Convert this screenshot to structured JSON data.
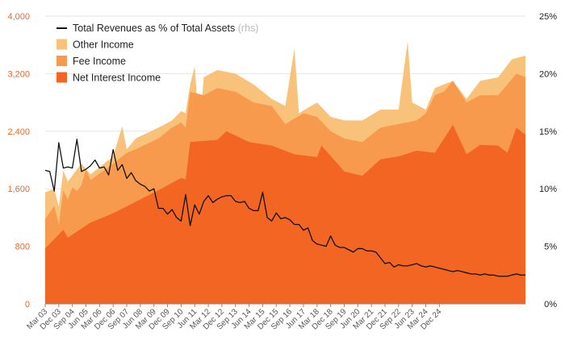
{
  "chart_data": {
    "type": "area",
    "stacked": true,
    "grid": true,
    "legend_position": "top-left",
    "x_label_first": "Mar 03",
    "x_tick_labels": [
      "Mar 03",
      "Dec 03",
      "Sep 04",
      "Jun 05",
      "Mar 06",
      "Dec 06",
      "Sep 07",
      "Jun 08",
      "Mar 09",
      "Dec 09",
      "Sep 10",
      "Jun 11",
      "Mar 12",
      "Dec 12",
      "Sep 13",
      "Jun 14",
      "Mar 15",
      "Dec 15",
      "Sep 16",
      "Jun 17",
      "Mar 18",
      "Dec 18",
      "Sep 19",
      "Jun 20",
      "Mar 21",
      "Dec 21",
      "Sep 22",
      "Jun 23",
      "Mar 24",
      "Dec 24"
    ],
    "y_left": {
      "ylim": [
        0,
        4000
      ],
      "ticks": [
        0,
        800,
        1600,
        2400,
        3200,
        4000
      ],
      "tick_labels": [
        "0",
        "800",
        "1,600",
        "2,400",
        "3,200",
        "4,000"
      ]
    },
    "y_right": {
      "ylim": [
        0,
        25
      ],
      "ticks": [
        0,
        5,
        10,
        15,
        20,
        25
      ],
      "tick_labels": [
        "0%",
        "5%",
        "10%",
        "15%",
        "20%",
        "25%"
      ]
    },
    "series": [
      {
        "name": "Net Interest Income",
        "axis": "left",
        "color": "#f26522",
        "keypoints": [
          [
            0,
            770
          ],
          [
            4,
            1030
          ],
          [
            5,
            920
          ],
          [
            10,
            1130
          ],
          [
            15,
            1260
          ],
          [
            20,
            1420
          ],
          [
            25,
            1580
          ],
          [
            30,
            1750
          ],
          [
            31,
            1730
          ],
          [
            32,
            2250
          ],
          [
            38,
            2280
          ],
          [
            40,
            2400
          ],
          [
            45,
            2250
          ],
          [
            50,
            2200
          ],
          [
            55,
            2080
          ],
          [
            60,
            2040
          ],
          [
            61,
            2200
          ],
          [
            66,
            1840
          ],
          [
            70,
            1780
          ],
          [
            74,
            2010
          ],
          [
            78,
            2050
          ],
          [
            82,
            2130
          ],
          [
            86,
            2100
          ],
          [
            90,
            2490
          ],
          [
            93,
            2080
          ],
          [
            96,
            2210
          ],
          [
            100,
            2200
          ],
          [
            102,
            2100
          ],
          [
            104,
            2450
          ],
          [
            106,
            2350
          ]
        ]
      },
      {
        "name": "Fee Income",
        "axis": "left",
        "color": "#f79a4e",
        "keypoints": [
          [
            0,
            1180
          ],
          [
            2,
            1360
          ],
          [
            3,
            1100
          ],
          [
            4,
            1580
          ],
          [
            5,
            1450
          ],
          [
            6,
            1620
          ],
          [
            7,
            1570
          ],
          [
            8,
            1650
          ],
          [
            9,
            1870
          ],
          [
            10,
            1720
          ],
          [
            15,
            1950
          ],
          [
            18,
            2100
          ],
          [
            20,
            2150
          ],
          [
            25,
            2300
          ],
          [
            28,
            2450
          ],
          [
            30,
            2520
          ],
          [
            31,
            2450
          ],
          [
            32,
            2950
          ],
          [
            35,
            2900
          ],
          [
            38,
            3000
          ],
          [
            42,
            2950
          ],
          [
            46,
            2800
          ],
          [
            50,
            2750
          ],
          [
            53,
            2500
          ],
          [
            57,
            2650
          ],
          [
            60,
            2600
          ],
          [
            63,
            2400
          ],
          [
            66,
            2300
          ],
          [
            70,
            2250
          ],
          [
            74,
            2450
          ],
          [
            78,
            2500
          ],
          [
            82,
            2550
          ],
          [
            84,
            2650
          ],
          [
            86,
            2900
          ],
          [
            88,
            2950
          ],
          [
            90,
            3100
          ],
          [
            93,
            2800
          ],
          [
            96,
            2900
          ],
          [
            100,
            2900
          ],
          [
            104,
            3200
          ],
          [
            106,
            3150
          ]
        ]
      },
      {
        "name": "Other Income",
        "axis": "left",
        "color": "#f9c27b",
        "keypoints": [
          [
            0,
            1550
          ],
          [
            2,
            1600
          ],
          [
            3,
            1350
          ],
          [
            4,
            1850
          ],
          [
            5,
            1700
          ],
          [
            8,
            1950
          ],
          [
            10,
            1800
          ],
          [
            15,
            2050
          ],
          [
            17,
            2470
          ],
          [
            18,
            2150
          ],
          [
            20,
            2300
          ],
          [
            25,
            2450
          ],
          [
            28,
            2550
          ],
          [
            30,
            2680
          ],
          [
            31,
            2650
          ],
          [
            32,
            3050
          ],
          [
            33,
            3300
          ],
          [
            34,
            2400
          ],
          [
            35,
            3150
          ],
          [
            38,
            3250
          ],
          [
            42,
            3200
          ],
          [
            46,
            3050
          ],
          [
            50,
            2850
          ],
          [
            53,
            2750
          ],
          [
            55,
            3550
          ],
          [
            56,
            2650
          ],
          [
            60,
            2800
          ],
          [
            63,
            2600
          ],
          [
            66,
            2550
          ],
          [
            70,
            2550
          ],
          [
            74,
            2700
          ],
          [
            78,
            2700
          ],
          [
            80,
            3650
          ],
          [
            81,
            2800
          ],
          [
            84,
            2700
          ],
          [
            86,
            3000
          ],
          [
            88,
            3050
          ],
          [
            90,
            3100
          ],
          [
            93,
            2850
          ],
          [
            96,
            3100
          ],
          [
            100,
            3150
          ],
          [
            103,
            3400
          ],
          [
            106,
            3450
          ]
        ]
      },
      {
        "name": "Total Revenues as % of Total Assets",
        "name_note": "(rhs)",
        "axis": "right",
        "color": "#111111",
        "keypoints": [
          [
            0,
            11.6
          ],
          [
            1,
            11.5
          ],
          [
            2,
            9.8
          ],
          [
            3,
            14.0
          ],
          [
            4,
            11.8
          ],
          [
            5,
            11.9
          ],
          [
            6,
            11.8
          ],
          [
            7,
            14.3
          ],
          [
            8,
            11.5
          ],
          [
            9,
            11.7
          ],
          [
            10,
            12.0
          ],
          [
            11,
            12.5
          ],
          [
            12,
            11.8
          ],
          [
            13,
            11.9
          ],
          [
            14,
            11.2
          ],
          [
            15,
            13.4
          ],
          [
            16,
            11.6
          ],
          [
            17,
            12.1
          ],
          [
            18,
            10.9
          ],
          [
            19,
            11.4
          ],
          [
            20,
            10.7
          ],
          [
            21,
            10.4
          ],
          [
            22,
            10.2
          ],
          [
            23,
            9.8
          ],
          [
            24,
            10.0
          ],
          [
            25,
            8.3
          ],
          [
            26,
            8.3
          ],
          [
            27,
            7.8
          ],
          [
            28,
            8.2
          ],
          [
            29,
            7.5
          ],
          [
            30,
            7.2
          ],
          [
            31,
            9.5
          ],
          [
            32,
            6.8
          ],
          [
            33,
            8.6
          ],
          [
            34,
            7.8
          ],
          [
            35,
            8.9
          ],
          [
            36,
            9.4
          ],
          [
            37,
            8.8
          ],
          [
            38,
            9.1
          ],
          [
            39,
            9.3
          ],
          [
            40,
            9.4
          ],
          [
            41,
            9.4
          ],
          [
            42,
            8.9
          ],
          [
            43,
            8.8
          ],
          [
            44,
            8.9
          ],
          [
            45,
            8.3
          ],
          [
            46,
            8.1
          ],
          [
            47,
            8.1
          ],
          [
            48,
            9.7
          ],
          [
            49,
            7.5
          ],
          [
            50,
            7.2
          ],
          [
            51,
            7.9
          ],
          [
            52,
            7.4
          ],
          [
            53,
            7.5
          ],
          [
            54,
            7.3
          ],
          [
            55,
            6.9
          ],
          [
            56,
            6.9
          ],
          [
            57,
            6.4
          ],
          [
            58,
            6.6
          ],
          [
            59,
            5.5
          ],
          [
            60,
            5.2
          ],
          [
            61,
            5.1
          ],
          [
            62,
            5.0
          ],
          [
            63,
            5.9
          ],
          [
            64,
            5.1
          ],
          [
            65,
            4.9
          ],
          [
            66,
            4.9
          ],
          [
            67,
            4.7
          ],
          [
            68,
            4.5
          ],
          [
            69,
            4.8
          ],
          [
            70,
            4.8
          ],
          [
            71,
            4.6
          ],
          [
            72,
            4.6
          ],
          [
            73,
            4.5
          ],
          [
            74,
            4.0
          ],
          [
            75,
            3.5
          ],
          [
            76,
            3.6
          ],
          [
            77,
            3.2
          ],
          [
            78,
            3.4
          ],
          [
            79,
            3.3
          ],
          [
            80,
            3.3
          ],
          [
            81,
            3.4
          ],
          [
            82,
            3.5
          ],
          [
            83,
            3.3
          ],
          [
            84,
            3.2
          ],
          [
            85,
            3.3
          ],
          [
            86,
            3.2
          ],
          [
            87,
            3.1
          ],
          [
            88,
            3.0
          ],
          [
            89,
            2.9
          ],
          [
            90,
            2.8
          ],
          [
            91,
            2.9
          ],
          [
            92,
            2.8
          ],
          [
            93,
            2.7
          ],
          [
            94,
            2.6
          ],
          [
            95,
            2.6
          ],
          [
            96,
            2.5
          ],
          [
            97,
            2.6
          ],
          [
            98,
            2.5
          ],
          [
            99,
            2.5
          ],
          [
            100,
            2.4
          ],
          [
            101,
            2.4
          ],
          [
            102,
            2.4
          ],
          [
            103,
            2.5
          ],
          [
            104,
            2.6
          ],
          [
            105,
            2.5
          ],
          [
            106,
            2.5
          ]
        ]
      }
    ]
  }
}
